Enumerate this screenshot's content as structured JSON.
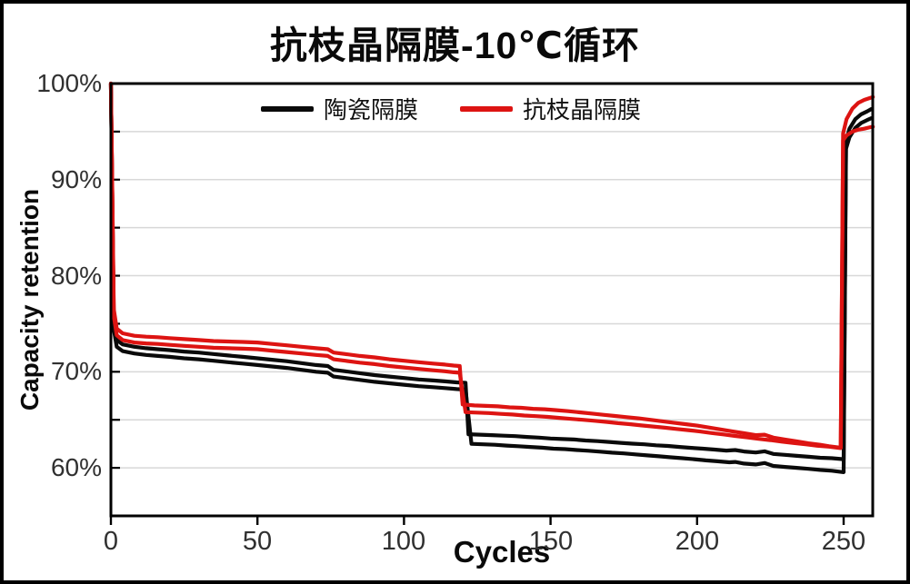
{
  "title": "抗枝晶隔膜-10℃循环",
  "colors": {
    "ceramic_series": "#0a0a0a",
    "antidendrite_series": "#dd1412",
    "grid": "#d8d8d8",
    "axis": "#000000"
  },
  "chart_data": {
    "type": "line",
    "title": "抗枝晶隔膜-10℃循环",
    "xlabel": "Cycles",
    "ylabel": "Capacity retention",
    "xlim": [
      0,
      260
    ],
    "ylim": [
      55,
      100
    ],
    "x_ticks": [
      0,
      50,
      100,
      150,
      200,
      250
    ],
    "x_tick_labels": [
      "0",
      "50",
      "100",
      "150",
      "200",
      "250"
    ],
    "y_tick_labels": [
      "100%",
      "90%",
      "80%",
      "70%",
      "60%"
    ],
    "y_label_values": [
      100,
      90,
      80,
      70,
      60
    ],
    "y_gridlines": [
      60,
      65,
      70,
      75,
      80,
      85,
      90,
      95
    ],
    "grid_on": true,
    "legend_position": "top-center",
    "grid_color": "#d8d8d8",
    "axis_color": "#000000",
    "legend": [
      {
        "label": "陶瓷隔膜",
        "color": "#0a0a0a"
      },
      {
        "label": "抗枝晶隔膜",
        "color": "#dd1412"
      }
    ],
    "series": [
      {
        "name": "陶瓷隔膜-1",
        "color": "#0a0a0a",
        "points": [
          [
            0,
            100
          ],
          [
            1,
            75.0
          ],
          [
            2,
            73.3
          ],
          [
            4,
            72.85
          ],
          [
            8,
            72.6
          ],
          [
            12,
            72.45
          ],
          [
            16,
            72.35
          ],
          [
            20,
            72.25
          ],
          [
            25,
            72.1
          ],
          [
            30,
            72.0
          ],
          [
            35,
            71.85
          ],
          [
            40,
            71.7
          ],
          [
            45,
            71.55
          ],
          [
            50,
            71.4
          ],
          [
            55,
            71.25
          ],
          [
            60,
            71.1
          ],
          [
            65,
            70.9
          ],
          [
            70,
            70.7
          ],
          [
            74,
            70.6
          ],
          [
            76,
            70.2
          ],
          [
            80,
            70.05
          ],
          [
            85,
            69.85
          ],
          [
            90,
            69.65
          ],
          [
            95,
            69.5
          ],
          [
            100,
            69.35
          ],
          [
            105,
            69.2
          ],
          [
            110,
            69.1
          ],
          [
            114,
            69.0
          ],
          [
            118,
            68.9
          ],
          [
            121,
            68.85
          ],
          [
            122,
            63.5
          ],
          [
            126,
            63.45
          ],
          [
            130,
            63.4
          ],
          [
            134,
            63.35
          ],
          [
            138,
            63.3
          ],
          [
            142,
            63.22
          ],
          [
            146,
            63.15
          ],
          [
            150,
            63.05
          ],
          [
            154,
            63.0
          ],
          [
            158,
            62.95
          ],
          [
            162,
            62.85
          ],
          [
            166,
            62.78
          ],
          [
            170,
            62.7
          ],
          [
            174,
            62.6
          ],
          [
            178,
            62.52
          ],
          [
            182,
            62.45
          ],
          [
            186,
            62.35
          ],
          [
            190,
            62.28
          ],
          [
            194,
            62.18
          ],
          [
            198,
            62.08
          ],
          [
            202,
            62.0
          ],
          [
            206,
            61.9
          ],
          [
            210,
            61.8
          ],
          [
            213,
            61.85
          ],
          [
            216,
            61.7
          ],
          [
            220,
            61.6
          ],
          [
            223,
            61.72
          ],
          [
            226,
            61.45
          ],
          [
            230,
            61.35
          ],
          [
            234,
            61.25
          ],
          [
            238,
            61.15
          ],
          [
            242,
            61.05
          ],
          [
            246,
            61.0
          ],
          [
            250,
            60.9
          ],
          [
            250.8,
            94.0
          ],
          [
            252,
            95.3
          ],
          [
            254,
            96.3
          ],
          [
            256,
            96.8
          ],
          [
            258,
            97.1
          ],
          [
            259.5,
            97.35
          ]
        ]
      },
      {
        "name": "陶瓷隔膜-2",
        "color": "#0a0a0a",
        "points": [
          [
            0,
            100
          ],
          [
            1,
            74.4
          ],
          [
            2,
            72.6
          ],
          [
            4,
            72.15
          ],
          [
            8,
            71.9
          ],
          [
            12,
            71.75
          ],
          [
            16,
            71.65
          ],
          [
            20,
            71.55
          ],
          [
            25,
            71.4
          ],
          [
            30,
            71.3
          ],
          [
            35,
            71.15
          ],
          [
            40,
            71.0
          ],
          [
            45,
            70.85
          ],
          [
            50,
            70.7
          ],
          [
            55,
            70.55
          ],
          [
            60,
            70.4
          ],
          [
            65,
            70.2
          ],
          [
            70,
            70.0
          ],
          [
            74,
            69.9
          ],
          [
            76,
            69.5
          ],
          [
            80,
            69.35
          ],
          [
            85,
            69.15
          ],
          [
            90,
            68.95
          ],
          [
            95,
            68.8
          ],
          [
            100,
            68.65
          ],
          [
            105,
            68.5
          ],
          [
            110,
            68.4
          ],
          [
            114,
            68.3
          ],
          [
            118,
            68.2
          ],
          [
            121,
            68.15
          ],
          [
            123,
            62.5
          ],
          [
            127,
            62.45
          ],
          [
            131,
            62.4
          ],
          [
            135,
            62.32
          ],
          [
            139,
            62.25
          ],
          [
            143,
            62.18
          ],
          [
            147,
            62.1
          ],
          [
            151,
            62.0
          ],
          [
            155,
            61.95
          ],
          [
            159,
            61.85
          ],
          [
            163,
            61.78
          ],
          [
            167,
            61.68
          ],
          [
            171,
            61.58
          ],
          [
            175,
            61.5
          ],
          [
            179,
            61.4
          ],
          [
            183,
            61.3
          ],
          [
            187,
            61.2
          ],
          [
            191,
            61.1
          ],
          [
            195,
            61.0
          ],
          [
            199,
            60.9
          ],
          [
            203,
            60.78
          ],
          [
            207,
            60.68
          ],
          [
            211,
            60.58
          ],
          [
            213,
            60.62
          ],
          [
            216,
            60.45
          ],
          [
            220,
            60.35
          ],
          [
            223,
            60.5
          ],
          [
            226,
            60.2
          ],
          [
            230,
            60.1
          ],
          [
            234,
            60.0
          ],
          [
            238,
            59.9
          ],
          [
            242,
            59.78
          ],
          [
            246,
            59.7
          ],
          [
            250,
            59.55
          ],
          [
            250.8,
            93.2
          ],
          [
            252,
            94.4
          ],
          [
            254,
            95.4
          ],
          [
            256,
            95.9
          ],
          [
            258,
            96.2
          ],
          [
            259.5,
            96.4
          ]
        ]
      },
      {
        "name": "抗枝晶隔膜-1",
        "color": "#dd1412",
        "points": [
          [
            0,
            100
          ],
          [
            1,
            76.5
          ],
          [
            2,
            74.5
          ],
          [
            4,
            74.0
          ],
          [
            8,
            73.75
          ],
          [
            12,
            73.65
          ],
          [
            16,
            73.6
          ],
          [
            20,
            73.5
          ],
          [
            25,
            73.4
          ],
          [
            30,
            73.3
          ],
          [
            35,
            73.2
          ],
          [
            40,
            73.15
          ],
          [
            45,
            73.1
          ],
          [
            50,
            73.05
          ],
          [
            55,
            72.9
          ],
          [
            60,
            72.75
          ],
          [
            65,
            72.6
          ],
          [
            70,
            72.45
          ],
          [
            74,
            72.35
          ],
          [
            76,
            72.0
          ],
          [
            80,
            71.85
          ],
          [
            85,
            71.65
          ],
          [
            90,
            71.5
          ],
          [
            95,
            71.3
          ],
          [
            100,
            71.15
          ],
          [
            105,
            71.0
          ],
          [
            110,
            70.85
          ],
          [
            114,
            70.75
          ],
          [
            117,
            70.65
          ],
          [
            119,
            70.6
          ],
          [
            120,
            66.6
          ],
          [
            124,
            66.5
          ],
          [
            128,
            66.45
          ],
          [
            132,
            66.4
          ],
          [
            136,
            66.3
          ],
          [
            140,
            66.25
          ],
          [
            144,
            66.15
          ],
          [
            148,
            66.1
          ],
          [
            152,
            66.0
          ],
          [
            156,
            65.9
          ],
          [
            160,
            65.78
          ],
          [
            164,
            65.65
          ],
          [
            168,
            65.52
          ],
          [
            172,
            65.4
          ],
          [
            176,
            65.28
          ],
          [
            180,
            65.15
          ],
          [
            184,
            65.0
          ],
          [
            188,
            64.85
          ],
          [
            192,
            64.7
          ],
          [
            196,
            64.55
          ],
          [
            200,
            64.4
          ],
          [
            204,
            64.2
          ],
          [
            208,
            64.0
          ],
          [
            212,
            63.8
          ],
          [
            216,
            63.6
          ],
          [
            220,
            63.4
          ],
          [
            223,
            63.45
          ],
          [
            226,
            63.15
          ],
          [
            230,
            62.95
          ],
          [
            234,
            62.75
          ],
          [
            238,
            62.55
          ],
          [
            242,
            62.4
          ],
          [
            245,
            62.25
          ],
          [
            249,
            62.1
          ],
          [
            249.8,
            94.8
          ],
          [
            251,
            96.3
          ],
          [
            253,
            97.4
          ],
          [
            255,
            98.0
          ],
          [
            257,
            98.3
          ],
          [
            259,
            98.5
          ],
          [
            260,
            98.6
          ]
        ]
      },
      {
        "name": "抗枝晶隔膜-2",
        "color": "#dd1412",
        "points": [
          [
            0,
            100
          ],
          [
            1,
            75.8
          ],
          [
            2,
            73.8
          ],
          [
            4,
            73.3
          ],
          [
            8,
            73.05
          ],
          [
            12,
            72.95
          ],
          [
            16,
            72.9
          ],
          [
            20,
            72.8
          ],
          [
            25,
            72.7
          ],
          [
            30,
            72.6
          ],
          [
            35,
            72.5
          ],
          [
            40,
            72.45
          ],
          [
            45,
            72.4
          ],
          [
            50,
            72.35
          ],
          [
            55,
            72.2
          ],
          [
            60,
            72.05
          ],
          [
            65,
            71.9
          ],
          [
            70,
            71.75
          ],
          [
            74,
            71.65
          ],
          [
            76,
            71.3
          ],
          [
            80,
            71.15
          ],
          [
            85,
            70.95
          ],
          [
            90,
            70.8
          ],
          [
            95,
            70.6
          ],
          [
            100,
            70.45
          ],
          [
            105,
            70.3
          ],
          [
            110,
            70.15
          ],
          [
            114,
            70.05
          ],
          [
            117,
            69.95
          ],
          [
            119,
            69.9
          ],
          [
            121,
            65.8
          ],
          [
            125,
            65.75
          ],
          [
            129,
            65.7
          ],
          [
            133,
            65.62
          ],
          [
            137,
            65.55
          ],
          [
            141,
            65.45
          ],
          [
            145,
            65.38
          ],
          [
            149,
            65.3
          ],
          [
            153,
            65.2
          ],
          [
            157,
            65.1
          ],
          [
            161,
            65.0
          ],
          [
            165,
            64.9
          ],
          [
            169,
            64.78
          ],
          [
            173,
            64.65
          ],
          [
            177,
            64.55
          ],
          [
            181,
            64.42
          ],
          [
            185,
            64.3
          ],
          [
            189,
            64.18
          ],
          [
            193,
            64.05
          ],
          [
            197,
            63.92
          ],
          [
            201,
            63.78
          ],
          [
            205,
            63.62
          ],
          [
            209,
            63.48
          ],
          [
            213,
            63.32
          ],
          [
            217,
            63.18
          ],
          [
            221,
            63.02
          ],
          [
            225,
            62.88
          ],
          [
            229,
            62.72
          ],
          [
            233,
            62.58
          ],
          [
            237,
            62.45
          ],
          [
            241,
            62.3
          ],
          [
            245,
            62.2
          ],
          [
            249,
            62.05
          ],
          [
            249.8,
            94.1
          ],
          [
            251,
            94.6
          ],
          [
            253,
            95.0
          ],
          [
            255,
            95.2
          ],
          [
            257,
            95.3
          ],
          [
            259,
            95.45
          ],
          [
            260,
            95.5
          ]
        ]
      }
    ]
  }
}
